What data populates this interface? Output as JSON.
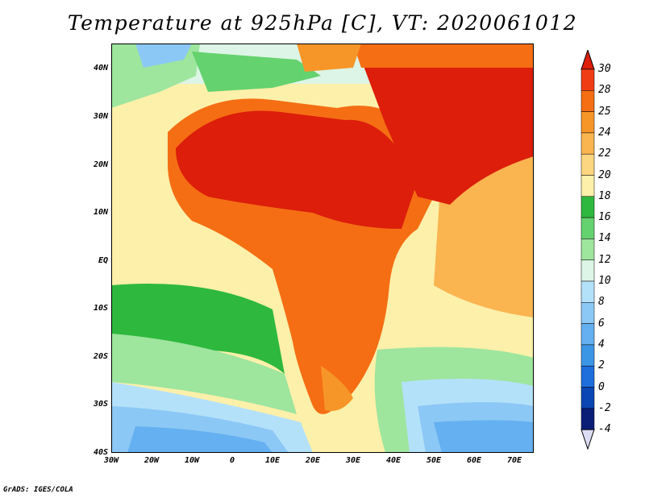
{
  "title": "Temperature at 925hPa [C], VT: 2020061012",
  "axes": {
    "x_ticks": [
      "30W",
      "20W",
      "10W",
      "0",
      "10E",
      "20E",
      "30E",
      "40E",
      "50E",
      "60E",
      "70E"
    ],
    "y_ticks": [
      "40N",
      "30N",
      "20N",
      "10N",
      "EQ",
      "10S",
      "20S",
      "30S",
      "40S"
    ],
    "lon_range": [
      -30,
      75
    ],
    "lat_range": [
      -40,
      45
    ]
  },
  "colorbar": {
    "levels": [
      "30",
      "28",
      "25",
      "24",
      "22",
      "20",
      "18",
      "16",
      "14",
      "12",
      "10",
      "8",
      "6",
      "4",
      "2",
      "0",
      "-2",
      "-4"
    ],
    "colors": [
      "#dc1e0b",
      "#f03c14",
      "#f56e14",
      "#f79628",
      "#fab450",
      "#fcd680",
      "#fdf0aa",
      "#2eb83e",
      "#64d26e",
      "#9ee59e",
      "#dcf5e6",
      "#b4e1fa",
      "#8cc8f5",
      "#64b0f0",
      "#3c96e6",
      "#1e6edc",
      "#0a46b4",
      "#0a1e78"
    ],
    "under_color": "#dcdcf5"
  },
  "credit": "GrADS: IGES/COLA"
}
